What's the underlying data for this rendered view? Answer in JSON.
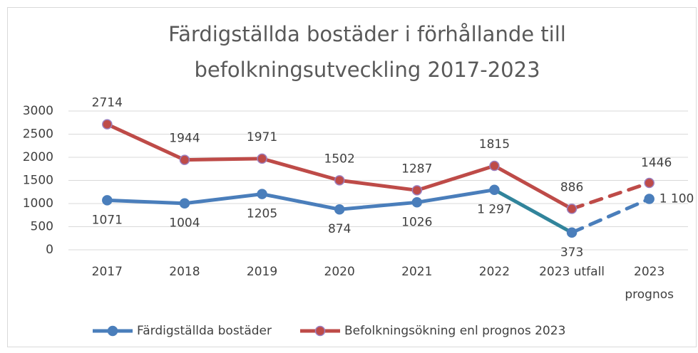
{
  "chart_data": {
    "type": "line",
    "title": "Färdigställda bostäder i förhållande till",
    "subtitle": "befolkningsutveckling 2017-2023",
    "categories": [
      "2017",
      "2018",
      "2019",
      "2020",
      "2021",
      "2022",
      "2023 utfall",
      "2023 prognos"
    ],
    "series": [
      {
        "name": "Färdigställda bostäder",
        "color": "#4a7ebb",
        "values": [
          1071,
          1004,
          1205,
          874,
          1026,
          1297,
          373,
          1100
        ],
        "value_labels": [
          "1071",
          "1004",
          "1205",
          "874",
          "1026",
          "1 297",
          "373",
          "1 100"
        ],
        "segments": [
          {
            "from": 0,
            "to": 5,
            "color": "#4a7ebb",
            "dashed": false
          },
          {
            "from": 5,
            "to": 6,
            "color": "#31849b",
            "dashed": false
          },
          {
            "from": 6,
            "to": 7,
            "color": "#4a7ebb",
            "dashed": true
          }
        ]
      },
      {
        "name": "Befolkningsökning enl prognos 2023",
        "color": "#be4b48",
        "values": [
          2714,
          1944,
          1971,
          1502,
          1287,
          1815,
          886,
          1446
        ],
        "segments": [
          {
            "from": 0,
            "to": 6,
            "color": "#be4b48",
            "dashed": false
          },
          {
            "from": 6,
            "to": 7,
            "color": "#be4b48",
            "dashed": true
          }
        ]
      }
    ],
    "ylim": [
      0,
      3000
    ],
    "yticks": [
      0,
      500,
      1000,
      1500,
      2000,
      2500,
      3000
    ],
    "grid": true,
    "legend": "bottom"
  }
}
